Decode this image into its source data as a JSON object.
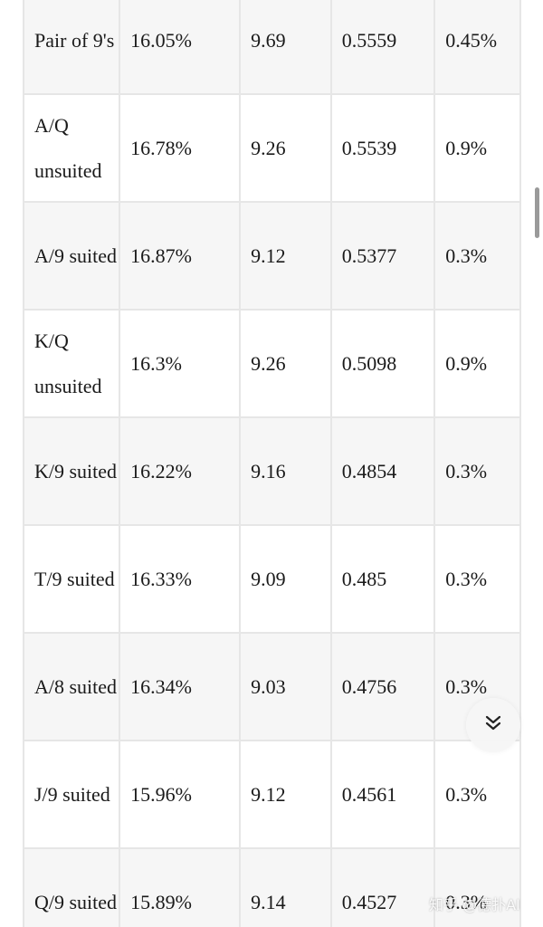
{
  "table": {
    "rows": [
      {
        "hand": "Pair of 9's",
        "win_pct": "16.05%",
        "v2": "9.69",
        "v3": "0.5559",
        "v4": "0.45%"
      },
      {
        "hand": "A/Q unsuited",
        "win_pct": "16.78%",
        "v2": "9.26",
        "v3": "0.5539",
        "v4": "0.9%"
      },
      {
        "hand": "A/9 suited",
        "win_pct": "16.87%",
        "v2": "9.12",
        "v3": "0.5377",
        "v4": "0.3%"
      },
      {
        "hand": "K/Q unsuited",
        "win_pct": "16.3%",
        "v2": "9.26",
        "v3": "0.5098",
        "v4": "0.9%"
      },
      {
        "hand": "K/9 suited",
        "win_pct": "16.22%",
        "v2": "9.16",
        "v3": "0.4854",
        "v4": "0.3%"
      },
      {
        "hand": "T/9 suited",
        "win_pct": "16.33%",
        "v2": "9.09",
        "v3": "0.485",
        "v4": "0.3%"
      },
      {
        "hand": "A/8 suited",
        "win_pct": "16.34%",
        "v2": "9.03",
        "v3": "0.4756",
        "v4": "0.3%"
      },
      {
        "hand": "J/9 suited",
        "win_pct": "15.96%",
        "v2": "9.12",
        "v3": "0.4561",
        "v4": "0.3%"
      },
      {
        "hand": "Q/9 suited",
        "win_pct": "15.89%",
        "v2": "9.14",
        "v3": "0.4527",
        "v4": "0.3%"
      }
    ]
  },
  "scroll_button": {
    "icon": "double-chevron-down-icon"
  },
  "watermark": {
    "text": "知乎 @德扑AI"
  },
  "colors": {
    "row_shade": "#f6f6f6",
    "row_plain": "#ffffff",
    "grid": "#e6e6e6",
    "text": "#1a1a1a"
  }
}
